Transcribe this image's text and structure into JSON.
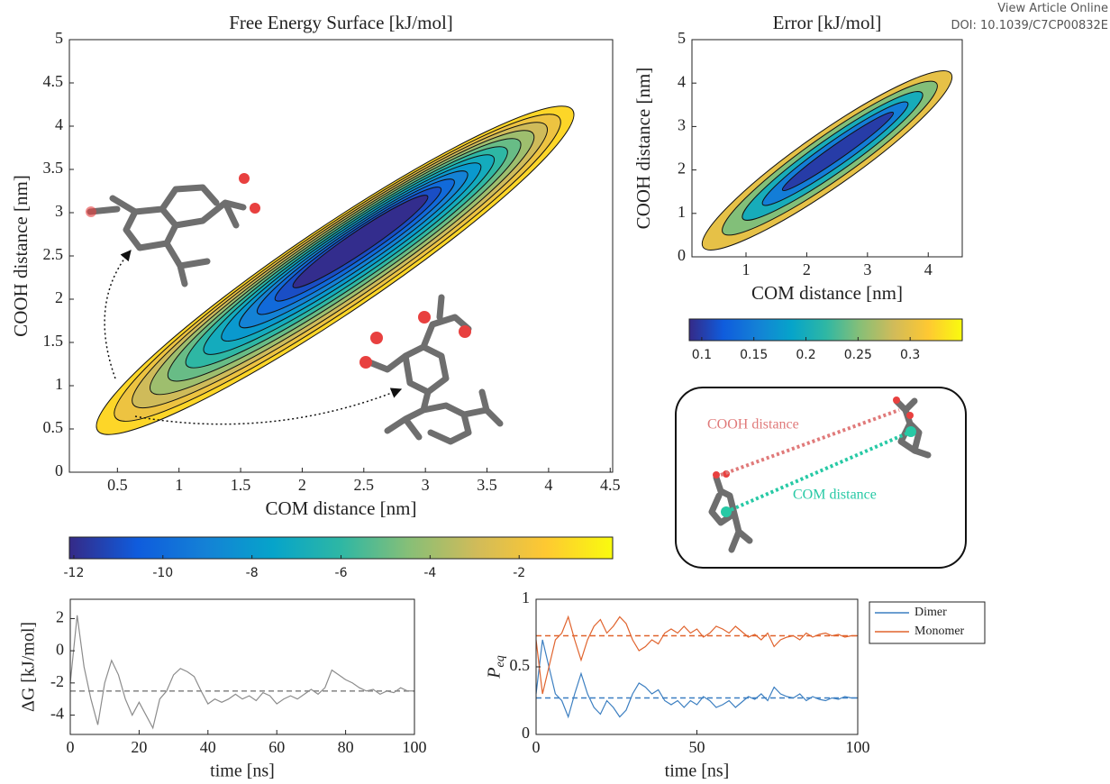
{
  "header": {
    "link": "View Article Online",
    "doi": "DOI: 10.1039/C7CP00832E"
  },
  "diagram": {
    "labels": [
      "COOH distance",
      "COM distance"
    ]
  },
  "chart_data": [
    {
      "type": "contour",
      "title": "Free Energy Surface [kJ/mol]",
      "xlabel": "COM distance [nm]",
      "ylabel": "COOH distance [nm]",
      "xlim": [
        0.11,
        4.52
      ],
      "ylim": [
        0,
        5
      ],
      "xticks": [
        0.5,
        1,
        1.5,
        2,
        2.5,
        3,
        3.5,
        4,
        4.5
      ],
      "yticks": [
        0,
        0.5,
        1,
        1.5,
        2,
        2.5,
        3,
        3.5,
        4,
        4.5,
        5
      ],
      "levels": [
        -12,
        -11,
        -10,
        -9,
        -8,
        -7,
        -6,
        -5,
        -4,
        -3,
        -2,
        -1
      ],
      "colorbar": {
        "clim": [
          -12.1,
          0.1
        ],
        "ticks": [
          -12,
          -10,
          -8,
          -6,
          -4,
          -2
        ]
      },
      "colormap": [
        "#352a87",
        "#0f5cdd",
        "#1481d6",
        "#06a4ca",
        "#2eb7a4",
        "#87bf77",
        "#d1bb59",
        "#fec832",
        "#f9fb0e"
      ]
    },
    {
      "type": "contour",
      "title": "Error [kJ/mol]",
      "xlabel": "COM distance [nm]",
      "ylabel": "COOH distance [nm]",
      "xlim": [
        0.11,
        4.56
      ],
      "ylim": [
        0,
        5
      ],
      "xticks": [
        1,
        2,
        3,
        4
      ],
      "yticks": [
        0,
        1,
        2,
        3,
        4,
        5
      ],
      "levels": [
        0.1,
        0.15,
        0.2,
        0.25,
        0.3
      ],
      "colorbar": {
        "clim": [
          0.088,
          0.35
        ],
        "ticks": [
          0.1,
          0.15,
          0.2,
          0.25,
          0.3
        ]
      },
      "colormap": [
        "#352a87",
        "#0f5cdd",
        "#1481d6",
        "#06a4ca",
        "#2eb7a4",
        "#87bf77",
        "#d1bb59",
        "#fec832",
        "#f9fb0e"
      ]
    },
    {
      "type": "line",
      "xlabel": "time [ns]",
      "ylabel": "ΔG [kJ/mol]",
      "xlim": [
        0,
        100
      ],
      "ylim": [
        -5.2,
        3.2
      ],
      "xticks": [
        0,
        20,
        40,
        60,
        80,
        100
      ],
      "yticks": [
        -4,
        -2,
        0,
        2
      ],
      "x": [
        0,
        2,
        4,
        6,
        8,
        10,
        12,
        14,
        16,
        18,
        20,
        22,
        24,
        26,
        28,
        30,
        32,
        34,
        36,
        38,
        40,
        42,
        44,
        46,
        48,
        50,
        52,
        54,
        56,
        58,
        60,
        62,
        64,
        66,
        68,
        70,
        72,
        74,
        76,
        78,
        80,
        82,
        84,
        86,
        88,
        90,
        92,
        94,
        96,
        98,
        100
      ],
      "series": [
        {
          "color": "#8c8c8c",
          "mean": -2.5,
          "values": [
            -2,
            2.2,
            -1,
            -3,
            -4.6,
            -2,
            -0.6,
            -1.5,
            -3,
            -4,
            -3.2,
            -4,
            -4.8,
            -3,
            -2.5,
            -1.5,
            -1.1,
            -1.3,
            -1.6,
            -2.5,
            -3.3,
            -3,
            -3.2,
            -3,
            -2.7,
            -3,
            -2.8,
            -3.1,
            -2.6,
            -2.8,
            -3.3,
            -3,
            -2.8,
            -3,
            -2.7,
            -2.4,
            -2.7,
            -2.3,
            -1.2,
            -1.5,
            -1.8,
            -2,
            -2.3,
            -2.5,
            -2.4,
            -2.7,
            -2.5,
            -2.6,
            -2.3,
            -2.5,
            -2.5
          ]
        }
      ]
    },
    {
      "type": "line",
      "xlabel": "time [ns]",
      "ylabel": "P",
      "ylabel_sub": "eq",
      "xlim": [
        0,
        100
      ],
      "ylim": [
        0,
        1
      ],
      "xticks": [
        0,
        50,
        100
      ],
      "yticks": [
        0,
        0.5,
        1
      ],
      "legend": "outside-right",
      "x": [
        0,
        2,
        4,
        6,
        8,
        10,
        12,
        14,
        16,
        18,
        20,
        22,
        24,
        26,
        28,
        30,
        32,
        34,
        36,
        38,
        40,
        42,
        44,
        46,
        48,
        50,
        52,
        54,
        56,
        58,
        60,
        62,
        64,
        66,
        68,
        70,
        72,
        74,
        76,
        78,
        80,
        82,
        84,
        86,
        88,
        90,
        92,
        94,
        96,
        98,
        100
      ],
      "series": [
        {
          "name": "Dimer",
          "color": "#3c7fc1",
          "mean": 0.27,
          "values": [
            0.3,
            0.7,
            0.5,
            0.3,
            0.25,
            0.13,
            0.3,
            0.45,
            0.3,
            0.2,
            0.15,
            0.25,
            0.2,
            0.13,
            0.18,
            0.3,
            0.38,
            0.35,
            0.3,
            0.33,
            0.25,
            0.22,
            0.25,
            0.2,
            0.25,
            0.22,
            0.28,
            0.25,
            0.2,
            0.22,
            0.25,
            0.2,
            0.24,
            0.28,
            0.26,
            0.3,
            0.25,
            0.35,
            0.3,
            0.28,
            0.27,
            0.3,
            0.25,
            0.28,
            0.26,
            0.25,
            0.27,
            0.26,
            0.28,
            0.27,
            0.27
          ]
        },
        {
          "name": "Monomer",
          "color": "#e0632d",
          "mean": 0.73,
          "values": [
            0.7,
            0.3,
            0.5,
            0.7,
            0.75,
            0.87,
            0.7,
            0.55,
            0.7,
            0.8,
            0.85,
            0.75,
            0.8,
            0.87,
            0.82,
            0.7,
            0.62,
            0.65,
            0.7,
            0.67,
            0.75,
            0.78,
            0.75,
            0.8,
            0.75,
            0.78,
            0.72,
            0.75,
            0.8,
            0.78,
            0.75,
            0.8,
            0.76,
            0.72,
            0.74,
            0.7,
            0.75,
            0.65,
            0.7,
            0.72,
            0.73,
            0.7,
            0.75,
            0.72,
            0.74,
            0.75,
            0.73,
            0.74,
            0.72,
            0.73,
            0.73
          ]
        }
      ]
    }
  ]
}
